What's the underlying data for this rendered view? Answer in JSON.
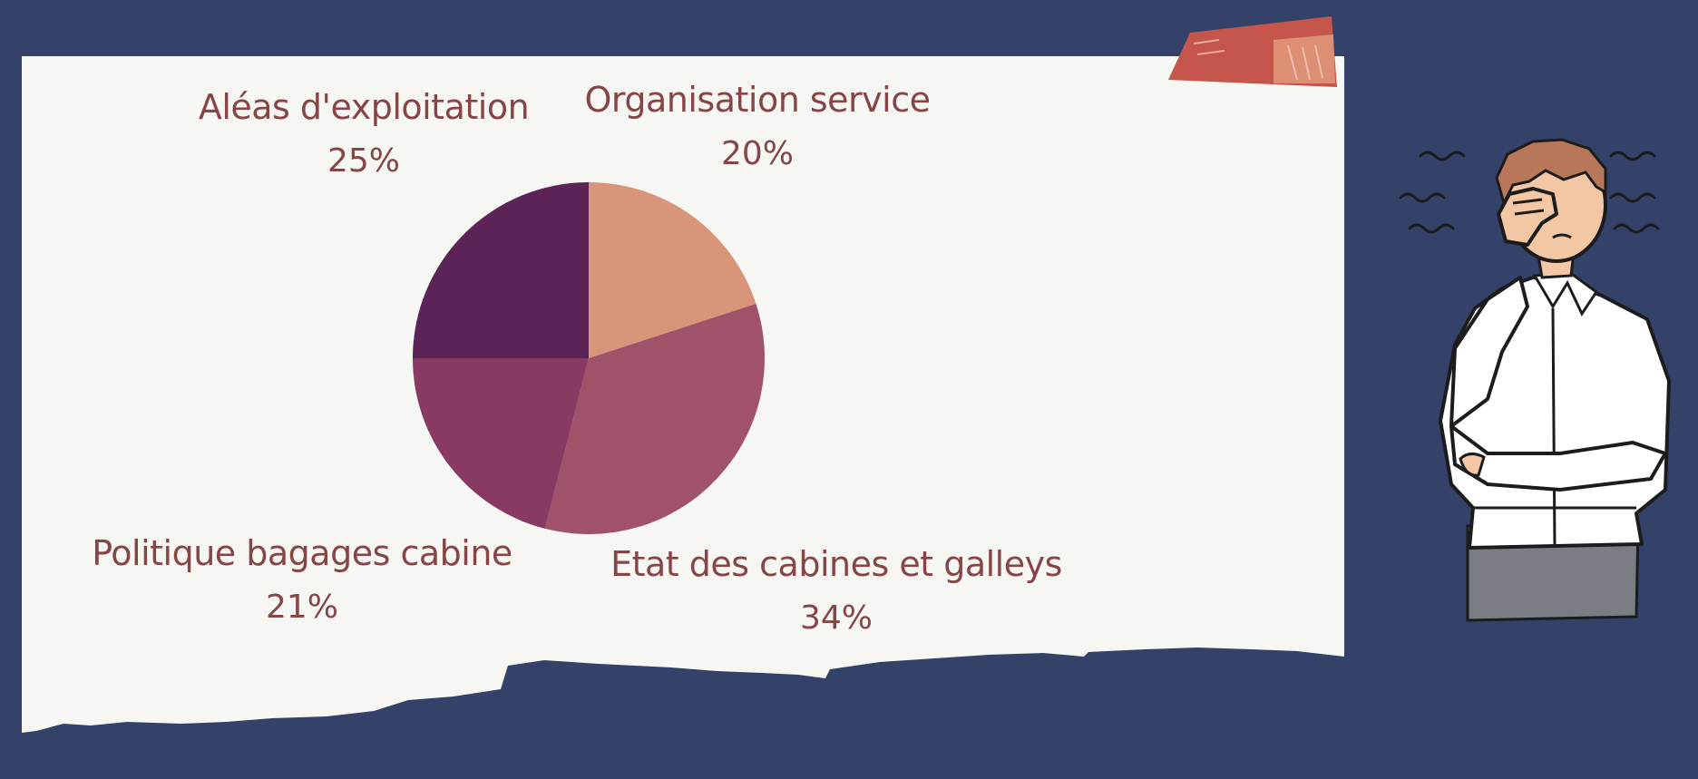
{
  "colors": {
    "background": "#34426a",
    "paper": "#f6f6f3",
    "label_text": "#864547",
    "tape": "#c6554c"
  },
  "illustration": "stressed-man-facepalm",
  "chart_data": {
    "type": "pie",
    "title": "",
    "start_angle_deg": 0,
    "direction": "clockwise",
    "slices": [
      {
        "label": "Organisation service",
        "value": 20,
        "value_label": "20%",
        "color": "#d8957a"
      },
      {
        "label": "Etat des cabines et galleys",
        "value": 34,
        "value_label": "34%",
        "color": "#a05268"
      },
      {
        "label": "Politique bagages cabine",
        "value": 21,
        "value_label": "21%",
        "color": "#883a62"
      },
      {
        "label": "Aléas d'exploitation",
        "value": 25,
        "value_label": "25%",
        "color": "#5c2456"
      }
    ]
  }
}
